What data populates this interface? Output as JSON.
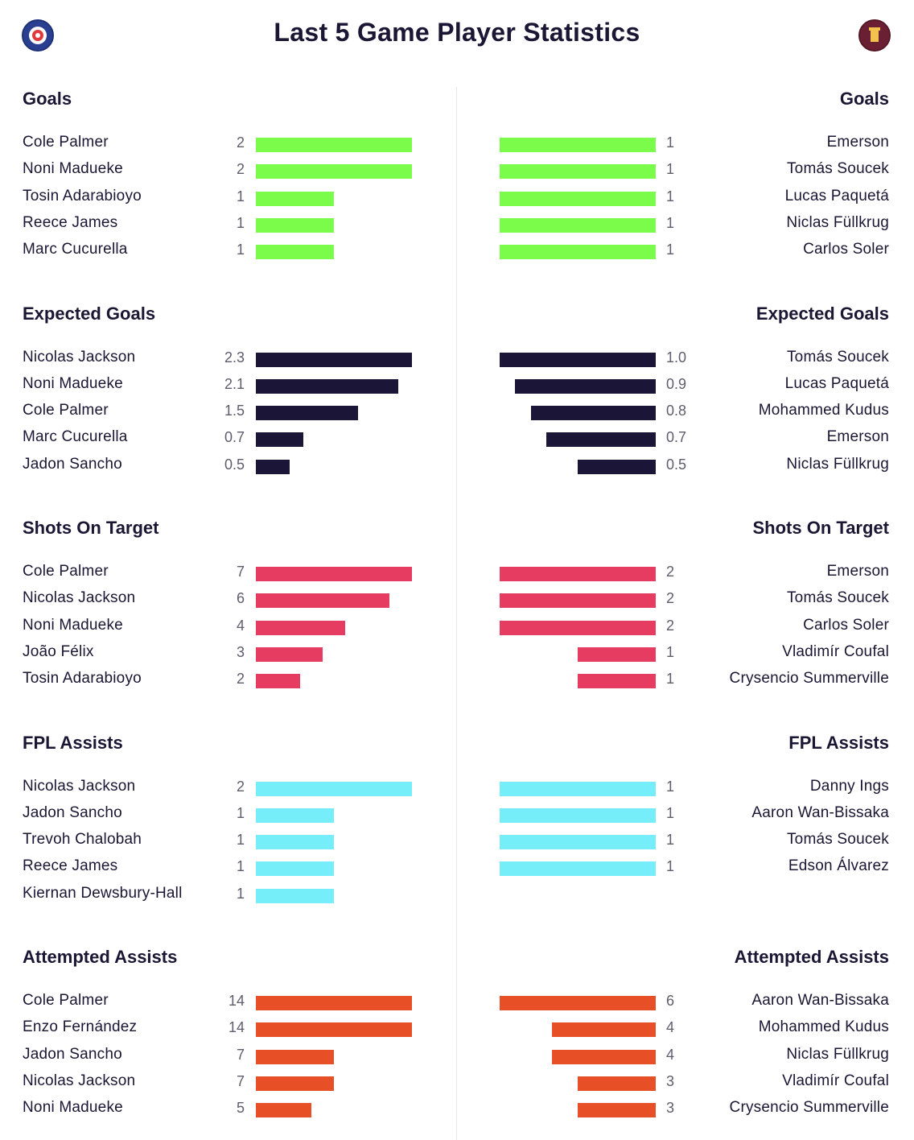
{
  "title": "Last 5 Game Player Statistics",
  "colors": {
    "goals": "#7cfc4a",
    "expected_goals": "#1b1638",
    "shots_on_target": "#e63c62",
    "fpl_assists": "#76eefa",
    "attempted_assists": "#e74f26"
  },
  "chart_data": [
    {
      "type": "bar",
      "title": "Goals",
      "color_key": "goals",
      "left": [
        {
          "player": "Cole Palmer",
          "value": 2,
          "label": "2"
        },
        {
          "player": "Noni Madueke",
          "value": 2,
          "label": "2"
        },
        {
          "player": "Tosin Adarabioyo",
          "value": 1,
          "label": "1"
        },
        {
          "player": "Reece James",
          "value": 1,
          "label": "1"
        },
        {
          "player": "Marc Cucurella",
          "value": 1,
          "label": "1"
        }
      ],
      "right": [
        {
          "player": "Emerson",
          "value": 1,
          "label": "1"
        },
        {
          "player": "Tomás Soucek",
          "value": 1,
          "label": "1"
        },
        {
          "player": "Lucas Paquetá",
          "value": 1,
          "label": "1"
        },
        {
          "player": "Niclas Füllkrug",
          "value": 1,
          "label": "1"
        },
        {
          "player": "Carlos Soler",
          "value": 1,
          "label": "1"
        }
      ]
    },
    {
      "type": "bar",
      "title": "Expected Goals",
      "color_key": "expected_goals",
      "left": [
        {
          "player": "Nicolas Jackson",
          "value": 2.3,
          "label": "2.3"
        },
        {
          "player": "Noni Madueke",
          "value": 2.1,
          "label": "2.1"
        },
        {
          "player": "Cole Palmer",
          "value": 1.5,
          "label": "1.5"
        },
        {
          "player": "Marc Cucurella",
          "value": 0.7,
          "label": "0.7"
        },
        {
          "player": "Jadon Sancho",
          "value": 0.5,
          "label": "0.5"
        }
      ],
      "right": [
        {
          "player": "Tomás Soucek",
          "value": 1.0,
          "label": "1.0"
        },
        {
          "player": "Lucas Paquetá",
          "value": 0.9,
          "label": "0.9"
        },
        {
          "player": "Mohammed Kudus",
          "value": 0.8,
          "label": "0.8"
        },
        {
          "player": "Emerson",
          "value": 0.7,
          "label": "0.7"
        },
        {
          "player": "Niclas Füllkrug",
          "value": 0.5,
          "label": "0.5"
        }
      ]
    },
    {
      "type": "bar",
      "title": "Shots On Target",
      "color_key": "shots_on_target",
      "left": [
        {
          "player": "Cole Palmer",
          "value": 7,
          "label": "7"
        },
        {
          "player": "Nicolas Jackson",
          "value": 6,
          "label": "6"
        },
        {
          "player": "Noni Madueke",
          "value": 4,
          "label": "4"
        },
        {
          "player": "João Félix",
          "value": 3,
          "label": "3"
        },
        {
          "player": "Tosin Adarabioyo",
          "value": 2,
          "label": "2"
        }
      ],
      "right": [
        {
          "player": "Emerson",
          "value": 2,
          "label": "2"
        },
        {
          "player": "Tomás Soucek",
          "value": 2,
          "label": "2"
        },
        {
          "player": "Carlos Soler",
          "value": 2,
          "label": "2"
        },
        {
          "player": "Vladimír Coufal",
          "value": 1,
          "label": "1"
        },
        {
          "player": "Crysencio Summerville",
          "value": 1,
          "label": "1"
        }
      ]
    },
    {
      "type": "bar",
      "title": "FPL Assists",
      "color_key": "fpl_assists",
      "left": [
        {
          "player": "Nicolas Jackson",
          "value": 2,
          "label": "2"
        },
        {
          "player": "Jadon Sancho",
          "value": 1,
          "label": "1"
        },
        {
          "player": "Trevoh Chalobah",
          "value": 1,
          "label": "1"
        },
        {
          "player": "Reece James",
          "value": 1,
          "label": "1"
        },
        {
          "player": "Kiernan Dewsbury-Hall",
          "value": 1,
          "label": "1"
        }
      ],
      "right": [
        {
          "player": "Danny Ings",
          "value": 1,
          "label": "1"
        },
        {
          "player": "Aaron Wan-Bissaka",
          "value": 1,
          "label": "1"
        },
        {
          "player": "Tomás Soucek",
          "value": 1,
          "label": "1"
        },
        {
          "player": "Edson Álvarez",
          "value": 1,
          "label": "1"
        }
      ]
    },
    {
      "type": "bar",
      "title": "Attempted Assists",
      "color_key": "attempted_assists",
      "left": [
        {
          "player": "Cole Palmer",
          "value": 14,
          "label": "14"
        },
        {
          "player": "Enzo Fernández",
          "value": 14,
          "label": "14"
        },
        {
          "player": "Jadon Sancho",
          "value": 7,
          "label": "7"
        },
        {
          "player": "Nicolas Jackson",
          "value": 7,
          "label": "7"
        },
        {
          "player": "Noni Madueke",
          "value": 5,
          "label": "5"
        }
      ],
      "right": [
        {
          "player": "Aaron Wan-Bissaka",
          "value": 6,
          "label": "6"
        },
        {
          "player": "Mohammed Kudus",
          "value": 4,
          "label": "4"
        },
        {
          "player": "Niclas Füllkrug",
          "value": 4,
          "label": "4"
        },
        {
          "player": "Vladimír Coufal",
          "value": 3,
          "label": "3"
        },
        {
          "player": "Crysencio Summerville",
          "value": 3,
          "label": "3"
        }
      ]
    }
  ]
}
